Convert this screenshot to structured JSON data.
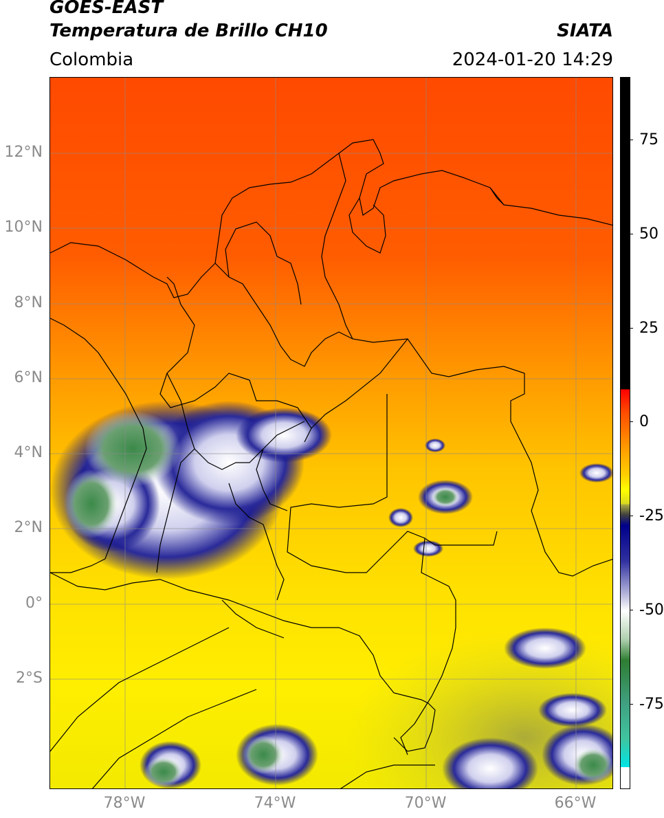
{
  "header": {
    "title_line1": "GOES-EAST",
    "title_line2": "Temperatura de Brillo CH10",
    "region": "Colombia",
    "brand": "SIATA",
    "datetime": "2024-01-20 14:29"
  },
  "map": {
    "lat_labels": [
      "12°N",
      "10°N",
      "8°N",
      "6°N",
      "4°N",
      "2°N",
      "0°",
      "2°S"
    ],
    "lon_labels": [
      "78°W",
      "74°W",
      "70°W",
      "66°W"
    ],
    "extent": {
      "lon_min": -79.9,
      "lon_max": -64.9,
      "lat_min": -4.9,
      "lat_max": 14.0
    }
  },
  "colorbar": {
    "ticks": [
      "75",
      "50",
      "25",
      "0",
      "-25",
      "-50",
      "-75"
    ],
    "range": [
      -100,
      90
    ],
    "colors": {
      "black": "#000000",
      "red": "#ff0000",
      "orange": "#ff8800",
      "yellow": "#ffff00",
      "olive": "#9a9a3c",
      "navy": "#00008b",
      "white": "#ffffff",
      "green": "#2e7d32",
      "teal": "#40c4a0",
      "cyan": "#00e5e5"
    }
  }
}
